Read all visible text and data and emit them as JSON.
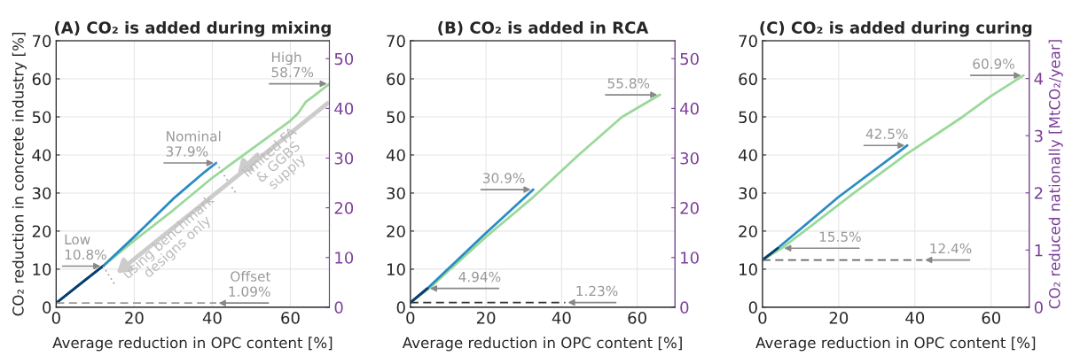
{
  "chart_data": [
    {
      "type": "line",
      "title": "(A) CO₂ is added during mixing",
      "xlabel": "Average reduction in OPC content [%]",
      "ylabel": "CO₂ reduction in concrete industry [%]",
      "xlim": [
        0,
        70
      ],
      "xticks": [
        0,
        20,
        40,
        60
      ],
      "ylim": [
        0,
        70
      ],
      "yticks": [
        0,
        10,
        20,
        30,
        40,
        50,
        60,
        70
      ],
      "y2lim": [
        0,
        53.6
      ],
      "y2ticks": [
        0,
        10,
        20,
        30,
        40,
        50
      ],
      "grid": true,
      "marker": "none",
      "series": [
        {
          "color": "#9ad99a",
          "x": [
            0,
            12,
            20,
            30,
            40,
            50,
            60,
            62,
            64,
            66,
            70
          ],
          "values": [
            1.09,
            10.8,
            17.5,
            25.5,
            34,
            41.5,
            49,
            51,
            54,
            55.5,
            58.7
          ]
        },
        {
          "color": "#2a8cc4",
          "x": [
            0,
            12,
            20,
            30,
            38,
            41
          ],
          "values": [
            1.09,
            10.8,
            18.5,
            28.5,
            35.5,
            37.9
          ]
        },
        {
          "color": "#0b3c6e",
          "x": [
            0,
            6,
            12
          ],
          "values": [
            1.09,
            6,
            10.8
          ]
        },
        {
          "color": "#999999",
          "line_style": "dashed",
          "x": [
            0,
            41
          ],
          "values": [
            1.09,
            1.09
          ]
        },
        {
          "color": "#aaaaaa",
          "line_style": "dotted",
          "x": [
            41,
            46
          ],
          "values": [
            37.9,
            30
          ]
        },
        {
          "color": "#aaaaaa",
          "line_style": "dotted",
          "x": [
            12,
            15
          ],
          "values": [
            10.8,
            6
          ]
        }
      ],
      "annotations": [
        {
          "text": "Low\n10.8%",
          "x": 12,
          "y": 10.8
        },
        {
          "text": "Nominal\n37.9%",
          "x": 41,
          "y": 37.9
        },
        {
          "text": "High\n58.7%",
          "x": 70,
          "y": 58.7
        },
        {
          "text": "Offset\n1.09%",
          "x": 41,
          "y": 1.09
        },
        {
          "text": "using benchmark\ndesigns only",
          "x": 15,
          "y": 8.5
        },
        "limited FA\n& GGBS\nsupply"
      ]
    },
    {
      "type": "line",
      "title": "(B) CO₂ is added in RCA",
      "xlabel": "Average reduction in OPC content [%]",
      "xlim": [
        0,
        70
      ],
      "xticks": [
        0,
        20,
        40,
        60
      ],
      "ylim": [
        0,
        70
      ],
      "yticks": [
        0,
        10,
        20,
        30,
        40,
        50,
        60,
        70
      ],
      "y2lim": [
        0,
        53.6
      ],
      "y2ticks": [
        0,
        10,
        20,
        30,
        40,
        50
      ],
      "grid": true,
      "marker": "none",
      "series": [
        {
          "color": "#9ad99a",
          "x": [
            0,
            5,
            10,
            20,
            32,
            44.5,
            56,
            66
          ],
          "values": [
            1.23,
            5,
            9.5,
            18.5,
            28.5,
            40,
            50,
            55.8
          ]
        },
        {
          "color": "#2a8cc4",
          "x": [
            0,
            4.5,
            20,
            32.5
          ],
          "values": [
            1.23,
            4.94,
            19.5,
            30.9
          ]
        },
        {
          "color": "#0b3c6e",
          "x": [
            0,
            4.5
          ],
          "values": [
            1.23,
            4.94
          ]
        },
        {
          "color": "#333333",
          "line_style": "dashed",
          "x": [
            0,
            41
          ],
          "values": [
            1.23,
            1.23
          ]
        }
      ],
      "annotations": [
        {
          "text": "30.9%",
          "x": 32.5,
          "y": 30.9
        },
        {
          "text": "4.94%",
          "x": 4.5,
          "y": 4.94
        },
        {
          "text": "1.23%",
          "x": 41,
          "y": 1.23
        },
        {
          "text": "55.8%",
          "x": 66,
          "y": 55.8
        }
      ]
    },
    {
      "type": "line",
      "title": "(C) CO₂ is added during curing",
      "xlabel": "Average reduction in OPC content [%]",
      "y2label": "CO₂ reduced nationally [MtCO₂/year]",
      "xlim": [
        0,
        70
      ],
      "xticks": [
        0,
        20,
        40,
        60
      ],
      "ylim": [
        0,
        70
      ],
      "yticks": [
        0,
        10,
        20,
        30,
        40,
        50,
        60,
        70
      ],
      "y2lim": [
        0,
        4.66
      ],
      "y2ticks": [
        0,
        1,
        2,
        3,
        4
      ],
      "grid": true,
      "marker": "none",
      "series": [
        {
          "color": "#9ad99a",
          "x": [
            0,
            5,
            11,
            24,
            37.5,
            52.5,
            60,
            68.5
          ],
          "values": [
            12.4,
            15.5,
            20,
            30,
            40,
            50,
            55.5,
            60.9
          ]
        },
        {
          "color": "#2a8cc4",
          "x": [
            0,
            4,
            20,
            38
          ],
          "values": [
            12.4,
            15.5,
            29,
            42.5
          ]
        },
        {
          "color": "#0b3c6e",
          "x": [
            0,
            4
          ],
          "values": [
            12.4,
            15.5
          ]
        },
        {
          "color": "#666666",
          "line_style": "dashed",
          "x": [
            0,
            42
          ],
          "values": [
            12.4,
            12.4
          ]
        }
      ],
      "annotations": [
        {
          "text": "42.5%",
          "x": 38,
          "y": 42.5
        },
        {
          "text": "60.9%",
          "x": 68.5,
          "y": 60.9
        },
        {
          "text": "15.5%",
          "x": 5,
          "y": 15.5
        },
        {
          "text": "12.4%",
          "x": 42,
          "y": 12.4
        }
      ]
    }
  ]
}
